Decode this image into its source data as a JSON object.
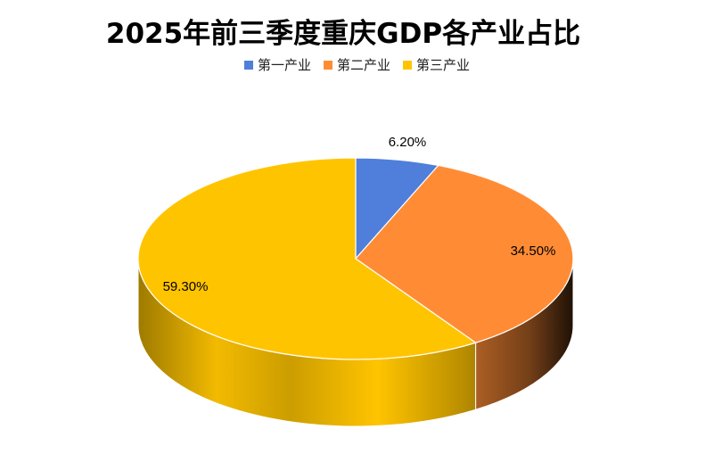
{
  "chart_data": {
    "type": "pie",
    "title": "2025年前三季度重庆GDP各产业占比",
    "categories": [
      "第一产业",
      "第二产业",
      "第三产业"
    ],
    "values": [
      6.2,
      34.5,
      59.3
    ],
    "data_labels": [
      "6.20%",
      "34.50%",
      "59.30%"
    ],
    "colors": [
      "#4F7FDB",
      "#FF8C35",
      "#FFC400"
    ],
    "style": "3d",
    "legend_position": "top"
  }
}
